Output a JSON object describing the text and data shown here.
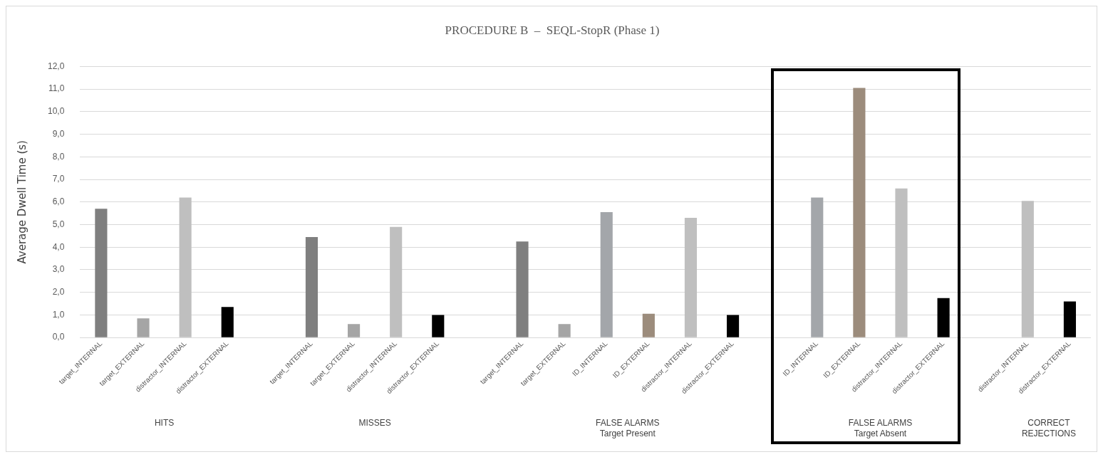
{
  "chart_data": {
    "type": "bar",
    "title": "PROCEDURE B  –  SEQL-StopR (Phase 1)",
    "ylabel": "Average Dwell Time (s)",
    "categories": [
      "target_INTERNAL",
      "target_EXTERNAL",
      "distractor_INTERNAL",
      "distractor_EXTERNAL",
      null,
      "target_INTERNAL",
      "target_EXTERNAL",
      "distractor_INTERNAL",
      "distractor_EXTERNAL",
      null,
      "target_INTERNAL",
      "target_EXTERNAL",
      "ID_INTERNAL",
      "ID_EXTERNAL",
      "distractor_INTERNAL",
      "distractor_EXTERNAL",
      null,
      "ID_INTERNAL",
      "ID_EXTERNAL",
      "distractor_INTERNAL",
      "distractor_EXTERNAL",
      null,
      "distractor_INTERNAL",
      "distractor_EXTERNAL"
    ],
    "values": [
      5.7,
      0.85,
      6.2,
      1.35,
      null,
      4.45,
      0.6,
      4.9,
      1.0,
      null,
      4.25,
      0.6,
      5.55,
      1.05,
      5.3,
      1.0,
      null,
      6.2,
      11.05,
      6.6,
      1.75,
      null,
      6.05,
      1.6
    ],
    "colors": [
      "#7f7f7f",
      "#a5a5a5",
      "#bfbfbf",
      "#000000",
      null,
      "#7f7f7f",
      "#a5a5a5",
      "#bfbfbf",
      "#000000",
      null,
      "#7f7f7f",
      "#a5a5a5",
      "#a3a6aa",
      "#9c8c7c",
      "#bfbfbf",
      "#000000",
      null,
      "#a3a6aa",
      "#9c8c7c",
      "#bfbfbf",
      "#000000",
      null,
      "#bfbfbf",
      "#000000"
    ],
    "ylim": [
      0,
      12
    ],
    "yticks": [
      {
        "value": 0,
        "label": "0,0"
      },
      {
        "value": 1,
        "label": "1,0"
      },
      {
        "value": 2,
        "label": "2,0"
      },
      {
        "value": 3,
        "label": "3,0"
      },
      {
        "value": 4,
        "label": "4,0"
      },
      {
        "value": 5,
        "label": "5,0"
      },
      {
        "value": 6,
        "label": "6,0"
      },
      {
        "value": 7,
        "label": "7,0"
      },
      {
        "value": 8,
        "label": "8,0"
      },
      {
        "value": 9,
        "label": "9,0"
      },
      {
        "value": 10,
        "label": "10,0"
      },
      {
        "value": 11,
        "label": "11,0"
      },
      {
        "value": 12,
        "label": "12,0"
      }
    ],
    "grid": "y",
    "legend": false,
    "annotations": [
      "HITS",
      "MISSES",
      "FALSE ALARMS\nTarget Present",
      "FALSE ALARMS\nTarget Absent",
      "CORRECT\nREJECTIONS"
    ]
  }
}
